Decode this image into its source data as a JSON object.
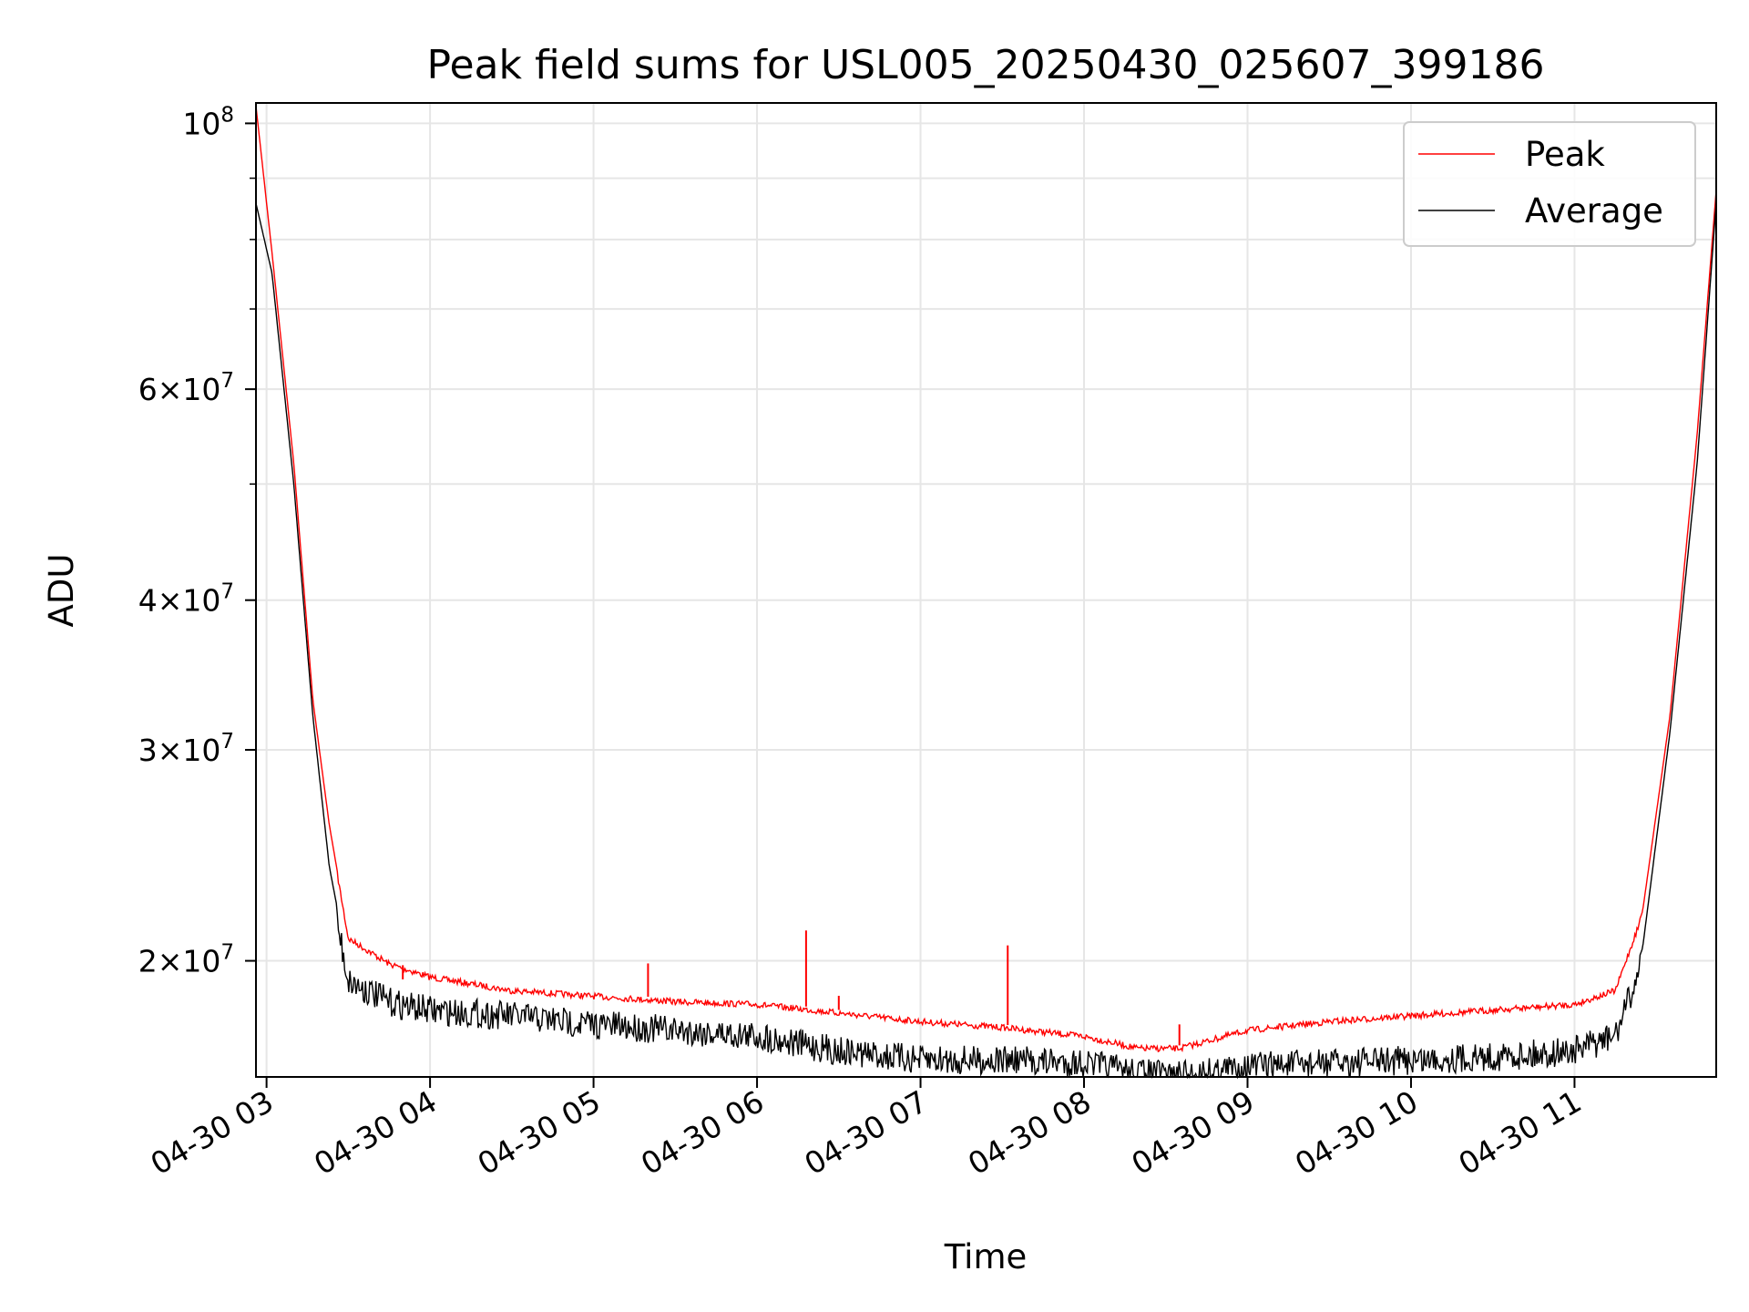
{
  "chart_data": {
    "type": "line",
    "title": "Peak field sums for USL005_20250430_025607_399186",
    "xlabel": "Time",
    "ylabel": "ADU",
    "y_scale": "log",
    "ylim": [
      16000000,
      104000000
    ],
    "xlim": [
      "2025-04-30T02:56:07",
      "2025-04-30T11:52:00"
    ],
    "grid": true,
    "legend_position": "top-right",
    "x_ticks": [
      {
        "value": "2025-04-30T03:00",
        "label": "04-30 03"
      },
      {
        "value": "2025-04-30T04:00",
        "label": "04-30 04"
      },
      {
        "value": "2025-04-30T05:00",
        "label": "04-30 05"
      },
      {
        "value": "2025-04-30T06:00",
        "label": "04-30 06"
      },
      {
        "value": "2025-04-30T07:00",
        "label": "04-30 07"
      },
      {
        "value": "2025-04-30T08:00",
        "label": "04-30 08"
      },
      {
        "value": "2025-04-30T09:00",
        "label": "04-30 09"
      },
      {
        "value": "2025-04-30T10:00",
        "label": "04-30 10"
      },
      {
        "value": "2025-04-30T11:00",
        "label": "04-30 11"
      }
    ],
    "y_ticks": [
      {
        "value": 100000000,
        "mant": "",
        "exp": "8"
      },
      {
        "value": 60000000,
        "mant": "6",
        "exp": "7"
      },
      {
        "value": 40000000,
        "mant": "4",
        "exp": "7"
      },
      {
        "value": 30000000,
        "mant": "3",
        "exp": "7"
      },
      {
        "value": 20000000,
        "mant": "2",
        "exp": "7"
      }
    ],
    "y_minor_ticks": [
      90000000,
      80000000,
      70000000,
      50000000
    ],
    "series": [
      {
        "name": "Peak",
        "color": "#ff0000",
        "x": [
          "2025-04-30T02:56",
          "2025-04-30T03:02",
          "2025-04-30T03:10",
          "2025-04-30T03:17",
          "2025-04-30T03:23",
          "2025-04-30T03:30",
          "2025-04-30T03:45",
          "2025-04-30T04:00",
          "2025-04-30T04:30",
          "2025-04-30T05:00",
          "2025-04-30T05:30",
          "2025-04-30T06:00",
          "2025-04-30T06:30",
          "2025-04-30T07:00",
          "2025-04-30T07:30",
          "2025-04-30T08:00",
          "2025-04-30T08:20",
          "2025-04-30T08:35",
          "2025-04-30T09:00",
          "2025-04-30T09:30",
          "2025-04-30T10:00",
          "2025-04-30T10:30",
          "2025-04-30T11:00",
          "2025-04-30T11:15",
          "2025-04-30T11:25",
          "2025-04-30T11:35",
          "2025-04-30T11:45",
          "2025-04-30T11:52"
        ],
        "y": [
          104000000,
          78000000,
          52000000,
          33000000,
          26000000,
          21000000,
          20000000,
          19500000,
          19000000,
          18800000,
          18600000,
          18500000,
          18200000,
          17900000,
          17700000,
          17400000,
          17000000,
          17000000,
          17600000,
          17900000,
          18100000,
          18300000,
          18500000,
          19000000,
          22000000,
          32000000,
          55000000,
          88000000
        ]
      },
      {
        "name": "Average",
        "color": "#000000",
        "x": [
          "2025-04-30T02:56",
          "2025-04-30T03:02",
          "2025-04-30T03:10",
          "2025-04-30T03:17",
          "2025-04-30T03:23",
          "2025-04-30T03:30",
          "2025-04-30T03:45",
          "2025-04-30T04:00",
          "2025-04-30T04:30",
          "2025-04-30T05:00",
          "2025-04-30T05:30",
          "2025-04-30T06:00",
          "2025-04-30T06:30",
          "2025-04-30T07:00",
          "2025-04-30T07:30",
          "2025-04-30T08:00",
          "2025-04-30T08:20",
          "2025-04-30T08:35",
          "2025-04-30T09:00",
          "2025-04-30T09:30",
          "2025-04-30T10:00",
          "2025-04-30T10:30",
          "2025-04-30T11:00",
          "2025-04-30T11:15",
          "2025-04-30T11:25",
          "2025-04-30T11:35",
          "2025-04-30T11:45",
          "2025-04-30T11:52"
        ],
        "y": [
          86000000,
          75000000,
          50000000,
          32000000,
          24000000,
          19800000,
          19000000,
          18700000,
          18500000,
          18200000,
          18000000,
          17800000,
          17300000,
          17000000,
          17000000,
          16900000,
          16600000,
          16500000,
          16800000,
          16900000,
          17000000,
          17100000,
          17300000,
          17800000,
          20500000,
          31000000,
          52000000,
          86000000
        ]
      }
    ],
    "spikes": [
      {
        "series": "Peak",
        "x": "2025-04-30T03:50",
        "y": 19300000
      },
      {
        "series": "Peak",
        "x": "2025-04-30T05:20",
        "y": 19900000
      },
      {
        "series": "Peak",
        "x": "2025-04-30T06:18",
        "y": 21200000
      },
      {
        "series": "Peak",
        "x": "2025-04-30T06:30",
        "y": 18700000
      },
      {
        "series": "Peak",
        "x": "2025-04-30T07:32",
        "y": 20600000
      },
      {
        "series": "Peak",
        "x": "2025-04-30T08:35",
        "y": 17700000
      }
    ]
  }
}
